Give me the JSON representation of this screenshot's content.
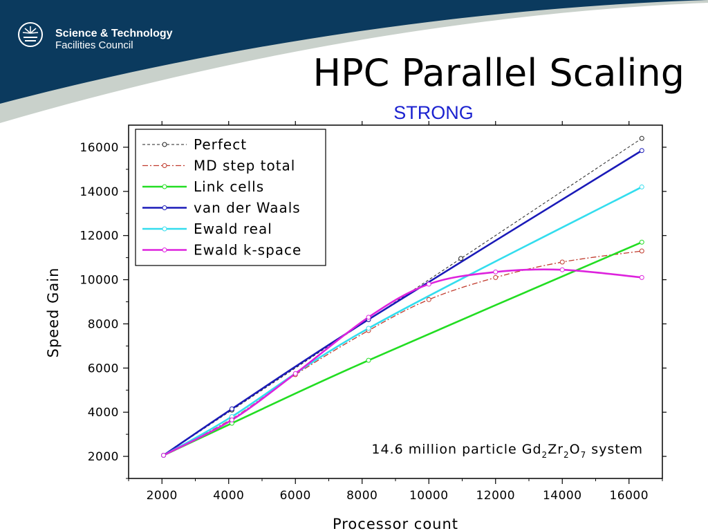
{
  "org": {
    "line1": "Science & Technology",
    "line2": "Facilities Council"
  },
  "slide": {
    "title": "HPC Parallel Scaling",
    "subtitle": "STRONG"
  },
  "chart_data": {
    "type": "line",
    "xlabel": "Processor count",
    "ylabel": "Speed Gain",
    "xlim": [
      1000,
      17000
    ],
    "ylim": [
      1000,
      17000
    ],
    "xticks": [
      2000,
      4000,
      6000,
      8000,
      10000,
      12000,
      14000,
      16000
    ],
    "yticks": [
      2000,
      4000,
      6000,
      8000,
      10000,
      12000,
      14000,
      16000
    ],
    "legend_position": "top-left",
    "grid": false,
    "annotation": {
      "pre": "14.6 million particle Gd",
      "s1": "2",
      "mid1": "Zr",
      "s2": "2",
      "mid2": "O",
      "s3": "7",
      "post": " system"
    },
    "series": [
      {
        "name": "Perfect",
        "color": "#222222",
        "style": "dashed",
        "x": [
          2048,
          4096,
          8192,
          10960,
          16384
        ],
        "y": [
          2048,
          4096,
          8192,
          10960,
          16400
        ]
      },
      {
        "name": "MD step total",
        "color": "#c0392b",
        "style": "dashdot",
        "x": [
          2048,
          4096,
          6000,
          8192,
          10000,
          12000,
          14000,
          16384
        ],
        "y": [
          2048,
          3700,
          5700,
          7700,
          9100,
          10100,
          10800,
          11300
        ]
      },
      {
        "name": "Link cells",
        "color": "#22dd22",
        "style": "solid",
        "x": [
          2048,
          4096,
          8192,
          16384
        ],
        "y": [
          2048,
          3500,
          6350,
          11700
        ]
      },
      {
        "name": "van der Waals",
        "color": "#1a1ab8",
        "style": "solid",
        "x": [
          2048,
          4096,
          8192,
          16384
        ],
        "y": [
          2048,
          4150,
          8200,
          15850
        ]
      },
      {
        "name": "Ewald real",
        "color": "#33ddee",
        "style": "solid",
        "x": [
          2048,
          4096,
          8192,
          16384
        ],
        "y": [
          2048,
          3800,
          7800,
          14200
        ]
      },
      {
        "name": "Ewald k-space",
        "color": "#dd22dd",
        "style": "solid",
        "x": [
          2048,
          4096,
          6000,
          8192,
          10000,
          12000,
          14000,
          16384
        ],
        "y": [
          2048,
          3650,
          5750,
          8300,
          9800,
          10350,
          10450,
          10100
        ]
      }
    ]
  }
}
